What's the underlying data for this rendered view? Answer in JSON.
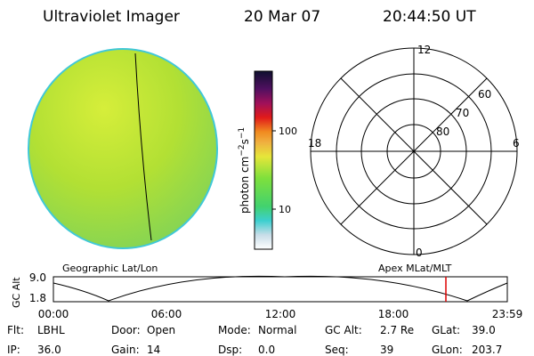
{
  "header": {
    "title": "Ultraviolet Imager",
    "date": "20 Mar 07",
    "time": "20:44:50 UT"
  },
  "colorbar": {
    "unit_parts": [
      "photon cm",
      "−2",
      "s",
      "−1"
    ],
    "labels": [
      "100",
      "10"
    ]
  },
  "polar": {
    "hour_labels": [
      "12",
      "18",
      "6",
      "0"
    ],
    "lat_labels": [
      "60",
      "70",
      "80"
    ]
  },
  "timeline": {
    "axis_label": "GC Alt",
    "y_labels": [
      "9.0",
      "1.8"
    ],
    "left_title": "Geographic Lat/Lon",
    "right_title": "Apex MLat/MLT",
    "x_labels": [
      "00:00",
      "06:00",
      "12:00",
      "18:00",
      "23:59"
    ]
  },
  "info": {
    "rows": [
      [
        [
          "Flt:",
          "LBHL"
        ],
        [
          "Door:",
          "Open"
        ],
        [
          "Mode:",
          "Normal"
        ],
        [
          "GC Alt:",
          "2.7 Re"
        ],
        [
          "GLat:",
          "39.0"
        ]
      ],
      [
        [
          "IP:",
          "36.0"
        ],
        [
          "Gain:",
          "14"
        ],
        [
          "Dsp:",
          "0.0"
        ],
        [
          "Seq:",
          "39"
        ],
        [
          "GLon:",
          "203.7"
        ]
      ]
    ]
  }
}
